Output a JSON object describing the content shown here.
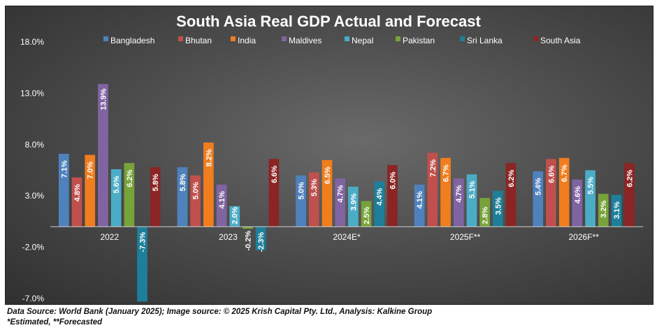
{
  "chart_data": {
    "type": "bar",
    "title": "South Asia Real GDP Actual and Forecast",
    "categories": [
      "2022",
      "2023",
      "2024E*",
      "2025F**",
      "2026F**"
    ],
    "ylim": [
      -7.0,
      18.0
    ],
    "yticks": [
      "18.0%",
      "13.0%",
      "8.0%",
      "3.0%",
      "-2.0%",
      "-7.0%"
    ],
    "ytick_values": [
      18.0,
      13.0,
      8.0,
      3.0,
      -2.0,
      -7.0
    ],
    "grid": false,
    "legend_position": "top",
    "series": [
      {
        "name": "Bangladesh",
        "color": "#4f81bd",
        "values": [
          7.1,
          5.8,
          5.0,
          4.1,
          5.4
        ],
        "labels": [
          "7.1%",
          "5.8%",
          "5.0%",
          "4.1%",
          "5.4%"
        ]
      },
      {
        "name": "Bhutan",
        "color": "#c0504d",
        "values": [
          4.8,
          5.0,
          5.3,
          7.2,
          6.6
        ],
        "labels": [
          "4.8%",
          "5.0%",
          "5.3%",
          "7.2%",
          "6.6%"
        ]
      },
      {
        "name": "India",
        "color": "#f07d1e",
        "values": [
          7.0,
          8.2,
          6.5,
          6.7,
          6.7
        ],
        "labels": [
          "7.0%",
          "8.2%",
          "6.5%",
          "6.7%",
          "6.7%"
        ]
      },
      {
        "name": "Maldives",
        "color": "#8064a2",
        "values": [
          13.9,
          4.1,
          4.7,
          4.7,
          4.6
        ],
        "labels": [
          "13.9%",
          "4.1%",
          "4.7%",
          "4.7%",
          "4.6%"
        ]
      },
      {
        "name": "Nepal",
        "color": "#4bacc6",
        "values": [
          5.6,
          2.0,
          3.9,
          5.1,
          5.5
        ],
        "labels": [
          "5.6%",
          "2.0%",
          "3.9%",
          "5.1%",
          "5.5%"
        ]
      },
      {
        "name": "Pakistan",
        "color": "#77a33a",
        "values": [
          6.2,
          -0.2,
          2.5,
          2.8,
          3.2
        ],
        "labels": [
          "6.2%",
          "-0.2%",
          "2.5%",
          "2.8%",
          "3.2%"
        ]
      },
      {
        "name": "Sri Lanka",
        "color": "#1d7f99",
        "values": [
          -7.3,
          -2.3,
          4.4,
          3.5,
          3.1
        ],
        "labels": [
          "-7.3%",
          "-2.3%",
          "4.4%",
          "3.5%",
          "3.1%"
        ]
      },
      {
        "name": "South Asia",
        "color": "#8b2525",
        "values": [
          5.8,
          6.6,
          6.0,
          6.2,
          6.2
        ],
        "labels": [
          "5.8%",
          "6.6%",
          "6.0%",
          "6.2%",
          "6.2%"
        ]
      }
    ]
  },
  "footnotes": {
    "line1": "Data Source: World Bank (January 2025); Image source: © 2025 Krish Capital Pty. Ltd., Analysis: Kalkine Group",
    "line2": "*Estimated, **Forecasted"
  }
}
